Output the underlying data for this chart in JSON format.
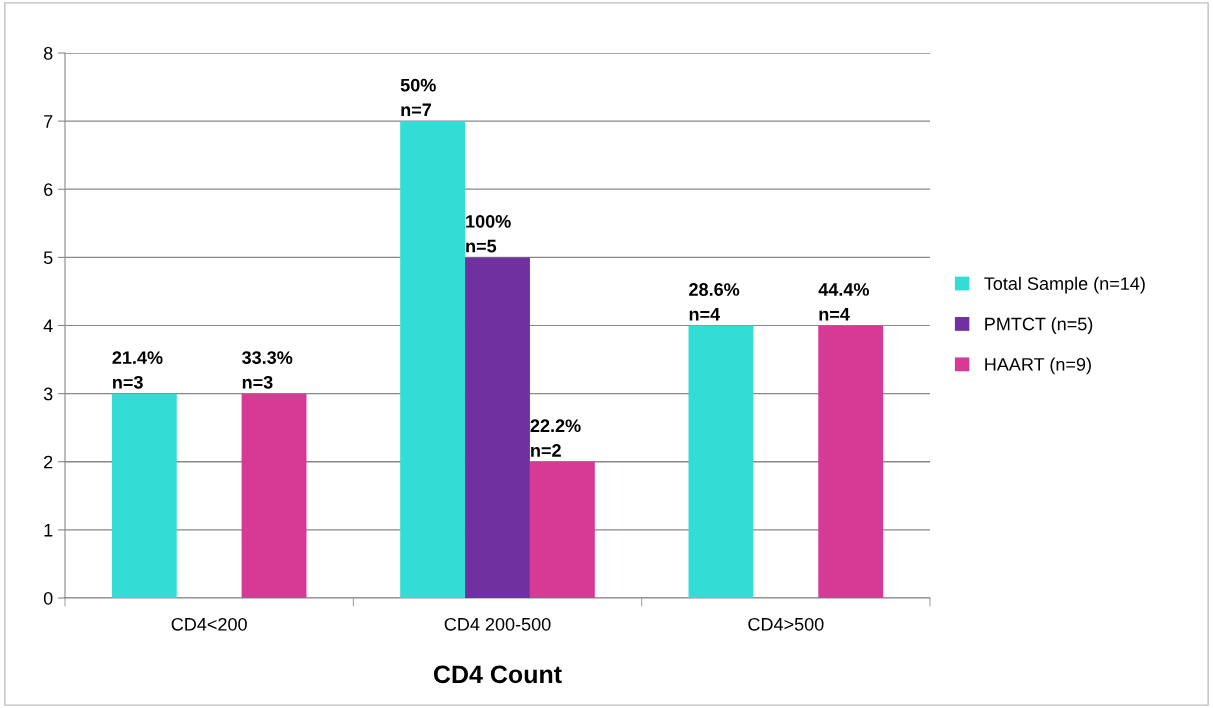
{
  "chart_data": {
    "type": "bar",
    "xlabel": "CD4 Count",
    "categories": [
      "CD4<200",
      "CD4 200-500",
      "CD4>500"
    ],
    "series": [
      {
        "name": "Total Sample (n=14)",
        "color": "#33dcd4",
        "values": [
          3,
          7,
          4
        ],
        "value_labels": [
          "21.4%\nn=3",
          "50%\nn=7",
          "28.6%\nn=4"
        ]
      },
      {
        "name": "PMTCT (n=5)",
        "color": "#7030a0",
        "values": [
          null,
          5,
          null
        ],
        "value_labels": [
          null,
          "100%\nn=5",
          null
        ]
      },
      {
        "name": "HAART (n=9)",
        "color": "#d63a94",
        "values": [
          3,
          2,
          4
        ],
        "value_labels": [
          "33.3%\nn=3",
          "22.2%\nn=2",
          "44.4%\nn=4"
        ]
      }
    ],
    "ylim": [
      0,
      8
    ],
    "yticks": [
      0,
      1,
      2,
      3,
      4,
      5,
      6,
      7,
      8
    ],
    "grid": "y",
    "legend": "right"
  }
}
